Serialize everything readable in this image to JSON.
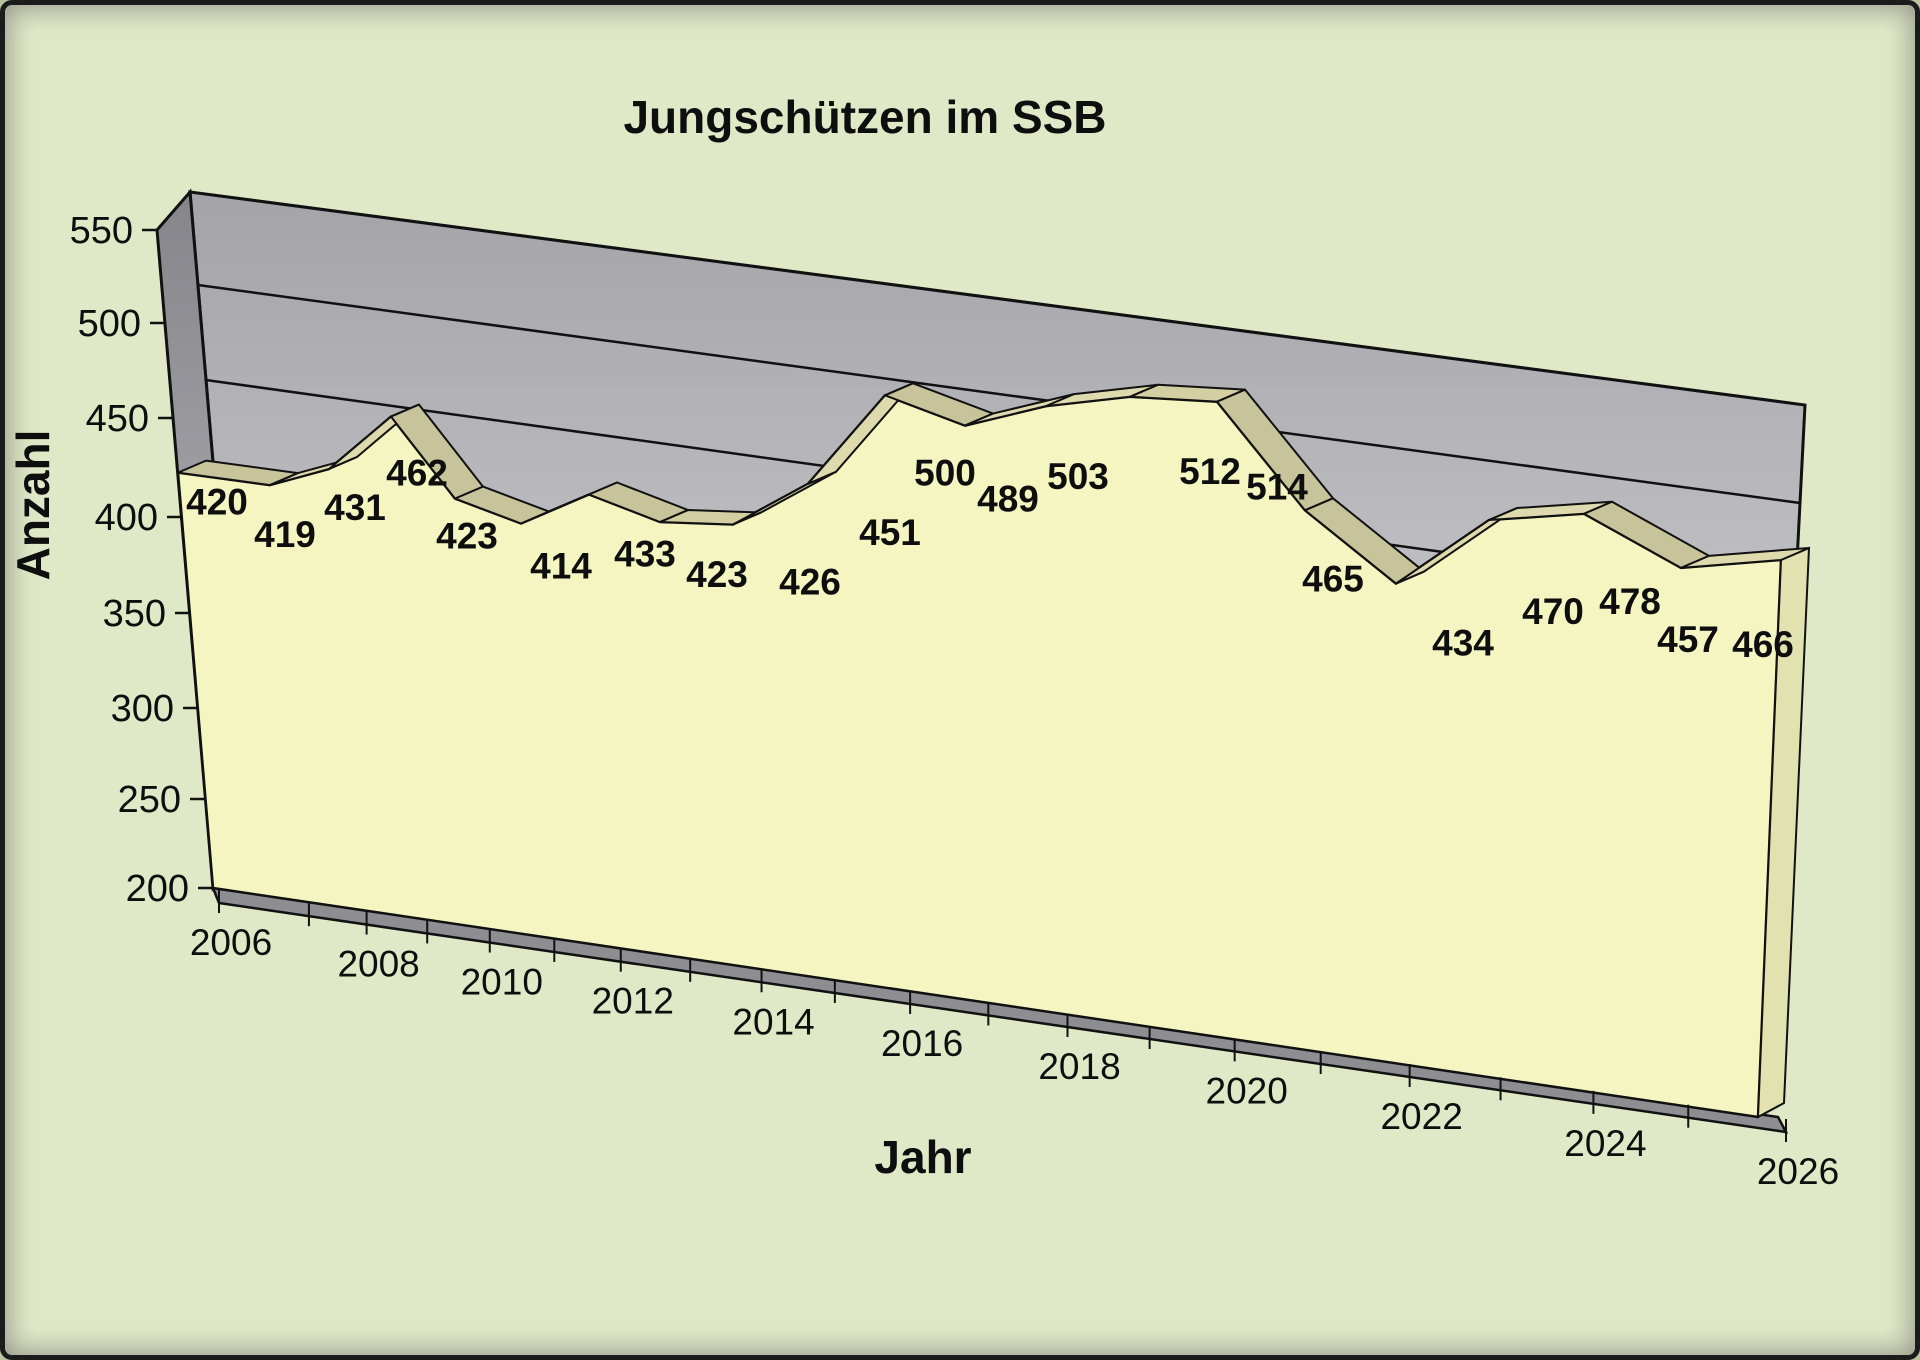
{
  "chart_data": {
    "type": "area",
    "projection": "3d",
    "title": "Jungschützen im SSB",
    "xlabel": "Jahr",
    "ylabel": "Anzahl",
    "years": [
      2006,
      2007,
      2008,
      2009,
      2010,
      2011,
      2012,
      2013,
      2014,
      2015,
      2016,
      2017,
      2018,
      2019,
      2020,
      2021,
      2022,
      2023,
      2024,
      2025,
      2026
    ],
    "values": [
      420,
      419,
      431,
      462,
      423,
      414,
      433,
      423,
      426,
      451,
      500,
      489,
      503,
      512,
      514,
      465,
      434,
      470,
      478,
      457,
      466
    ],
    "series_name": "Jungschützen",
    "ylim": [
      200,
      550
    ],
    "ytick_interval": 50,
    "yticks": [
      "550",
      "500",
      "450",
      "400",
      "350",
      "300",
      "250",
      "200"
    ],
    "xtick_labels": [
      "2006",
      "2008",
      "2010",
      "2012",
      "2014",
      "2016",
      "2018",
      "2020",
      "2022",
      "2024",
      "2026"
    ],
    "data_labels_shown": true,
    "grid": true,
    "legend": false,
    "colors": {
      "background": "#e0e9c7",
      "area_fill": "#f5f5c2",
      "ribbon_mid": "#d3cfa2",
      "ribbon_light": "#dedaae",
      "ribbon_dark": "#c7c39a",
      "right_face": "#e2e2b0",
      "wall_top": "#a9a9ad",
      "wall_bottom": "#dedee2",
      "side_wall_top": "#88888c",
      "side_wall_bottom": "#bcbcc1",
      "floor": "#8e8d92",
      "outline": "#111111"
    }
  }
}
